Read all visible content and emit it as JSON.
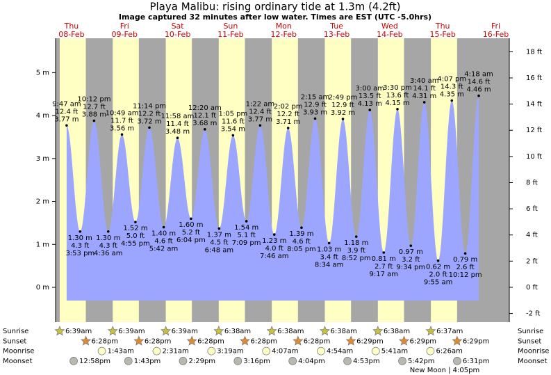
{
  "chart_data": {
    "type": "tide",
    "title": "Playa Malibu: rising  ordinary tide at 1.3m (4.2ft)",
    "subtitle": "Image captured 32 minutes after low water. Times are EST (UTC -5.0hrs)",
    "days": [
      {
        "weekday": "Thu",
        "date": "08-Feb"
      },
      {
        "weekday": "Fri",
        "date": "09-Feb"
      },
      {
        "weekday": "Sat",
        "date": "10-Feb"
      },
      {
        "weekday": "Sun",
        "date": "11-Feb"
      },
      {
        "weekday": "Mon",
        "date": "12-Feb"
      },
      {
        "weekday": "Tue",
        "date": "13-Feb"
      },
      {
        "weekday": "Wed",
        "date": "14-Feb"
      },
      {
        "weekday": "Thu",
        "date": "15-Feb"
      },
      {
        "weekday": "Fri",
        "date": "16-Feb"
      }
    ],
    "extremes": [
      {
        "date": "08-Feb",
        "time": "9:47 am",
        "value": 3.77,
        "value_label": "3.77 m",
        "ft_label": "12.4 ft"
      },
      {
        "date": "08-Feb",
        "time": "3:53 pm",
        "value": 1.3,
        "value_label": "1.30 m",
        "ft_label": "4.3 ft"
      },
      {
        "date": "08-Feb",
        "time": "10:12 pm",
        "value": 3.88,
        "value_label": "3.88 m",
        "ft_label": "12.7 ft"
      },
      {
        "date": "09-Feb",
        "time": "4:36 am",
        "value": 1.3,
        "value_label": "1.30 m",
        "ft_label": "4.3 ft"
      },
      {
        "date": "09-Feb",
        "time": "10:49 am",
        "value": 3.56,
        "value_label": "3.56 m",
        "ft_label": "11.7 ft"
      },
      {
        "date": "09-Feb",
        "time": "4:55 pm",
        "value": 1.52,
        "value_label": "1.52 m",
        "ft_label": "5.0 ft"
      },
      {
        "date": "09-Feb",
        "time": "11:14 pm",
        "value": 3.72,
        "value_label": "3.72 m",
        "ft_label": "12.2 ft"
      },
      {
        "date": "10-Feb",
        "time": "5:42 am",
        "value": 1.4,
        "value_label": "1.40 m",
        "ft_label": "4.6 ft"
      },
      {
        "date": "10-Feb",
        "time": "11:58 am",
        "value": 3.48,
        "value_label": "3.48 m",
        "ft_label": "11.4 ft"
      },
      {
        "date": "10-Feb",
        "time": "6:04 pm",
        "value": 1.6,
        "value_label": "1.60 m",
        "ft_label": "5.2 ft"
      },
      {
        "date": "11-Feb",
        "time": "12:20 am",
        "value": 3.68,
        "value_label": "3.68 m",
        "ft_label": "12.1 ft"
      },
      {
        "date": "11-Feb",
        "time": "6:48 am",
        "value": 1.37,
        "value_label": "1.37 m",
        "ft_label": "4.5 ft"
      },
      {
        "date": "11-Feb",
        "time": "1:05 pm",
        "value": 3.54,
        "value_label": "3.54 m",
        "ft_label": "11.6 ft"
      },
      {
        "date": "11-Feb",
        "time": "7:09 pm",
        "value": 1.54,
        "value_label": "1.54 m",
        "ft_label": "5.1 ft"
      },
      {
        "date": "12-Feb",
        "time": "1:22 am",
        "value": 3.77,
        "value_label": "3.77 m",
        "ft_label": "12.4 ft"
      },
      {
        "date": "12-Feb",
        "time": "7:46 am",
        "value": 1.23,
        "value_label": "1.23 m",
        "ft_label": "4.0 ft"
      },
      {
        "date": "12-Feb",
        "time": "2:02 pm",
        "value": 3.71,
        "value_label": "3.71 m",
        "ft_label": "12.2 ft"
      },
      {
        "date": "12-Feb",
        "time": "8:05 pm",
        "value": 1.39,
        "value_label": "1.39 m",
        "ft_label": "4.6 ft"
      },
      {
        "date": "13-Feb",
        "time": "2:15 am",
        "value": 3.93,
        "value_label": "3.93 m",
        "ft_label": "12.9 ft"
      },
      {
        "date": "13-Feb",
        "time": "8:34 am",
        "value": 1.03,
        "value_label": "1.03 m",
        "ft_label": "3.4 ft"
      },
      {
        "date": "13-Feb",
        "time": "2:49 pm",
        "value": 3.92,
        "value_label": "3.92 m",
        "ft_label": "12.9 ft"
      },
      {
        "date": "13-Feb",
        "time": "8:52 pm",
        "value": 1.18,
        "value_label": "1.18 m",
        "ft_label": "3.9 ft"
      },
      {
        "date": "14-Feb",
        "time": "3:00 am",
        "value": 4.13,
        "value_label": "4.13 m",
        "ft_label": "13.5 ft"
      },
      {
        "date": "14-Feb",
        "time": "9:17 am",
        "value": 0.81,
        "value_label": "0.81 m",
        "ft_label": "2.7 ft"
      },
      {
        "date": "14-Feb",
        "time": "3:30 pm",
        "value": 4.15,
        "value_label": "4.15 m",
        "ft_label": "13.6 ft"
      },
      {
        "date": "14-Feb",
        "time": "9:34 pm",
        "value": 0.97,
        "value_label": "0.97 m",
        "ft_label": "3.2 ft"
      },
      {
        "date": "15-Feb",
        "time": "3:40 am",
        "value": 4.31,
        "value_label": "4.31 m",
        "ft_label": "14.1 ft"
      },
      {
        "date": "15-Feb",
        "time": "9:55 am",
        "value": 0.62,
        "value_label": "0.62 m",
        "ft_label": "2.0 ft"
      },
      {
        "date": "15-Feb",
        "time": "4:07 pm",
        "value": 4.35,
        "value_label": "4.35 m",
        "ft_label": "14.3 ft"
      },
      {
        "date": "15-Feb",
        "time": "10:12 pm",
        "value": 0.79,
        "value_label": "0.79 m",
        "ft_label": "2.6 ft"
      },
      {
        "date": "16-Feb",
        "time": "4:18 am",
        "value": 4.46,
        "value_label": "4.46 m",
        "ft_label": "14.6 ft"
      }
    ],
    "ylim": [
      -0.81,
      5.8
    ],
    "yticks": [
      {
        "value": 0,
        "label": "0 m"
      },
      {
        "value": 1,
        "label": "1 m"
      },
      {
        "value": 2,
        "label": "2 m"
      },
      {
        "value": 3,
        "label": "3 m"
      },
      {
        "value": 4,
        "label": "4 m"
      },
      {
        "value": 5,
        "label": "5 m"
      }
    ],
    "y2lim": [
      -2.66,
      19.03
    ],
    "y2ticks": [
      {
        "value": -2,
        "label": "-2 ft"
      },
      {
        "value": 0,
        "label": "0 ft"
      },
      {
        "value": 2,
        "label": "2 ft"
      },
      {
        "value": 4,
        "label": "4 ft"
      },
      {
        "value": 6,
        "label": "6 ft"
      },
      {
        "value": 8,
        "label": "8 ft"
      },
      {
        "value": 10,
        "label": "10 ft"
      },
      {
        "value": 12,
        "label": "12 ft"
      },
      {
        "value": 14,
        "label": "14 ft"
      },
      {
        "value": 16,
        "label": "16 ft"
      },
      {
        "value": 18,
        "label": "18 ft"
      }
    ],
    "tide_color": "#9ca6ff",
    "night_color": "#a6a6a6",
    "day_color": "#ffffc4",
    "date_color": "#cc0000",
    "astronomy": [
      {
        "name": "Sunrise",
        "icon": "star",
        "color": "#c8c040",
        "events": [
          {
            "date": "08-Feb",
            "time": "6:39am"
          },
          {
            "date": "09-Feb",
            "time": "6:39am"
          },
          {
            "date": "10-Feb",
            "time": "6:39am"
          },
          {
            "date": "11-Feb",
            "time": "6:38am"
          },
          {
            "date": "12-Feb",
            "time": "6:38am"
          },
          {
            "date": "13-Feb",
            "time": "6:38am"
          },
          {
            "date": "14-Feb",
            "time": "6:38am"
          },
          {
            "date": "15-Feb",
            "time": "6:37am"
          }
        ]
      },
      {
        "name": "Sunset",
        "icon": "star",
        "color": "#e08a30",
        "events": [
          {
            "date": "08-Feb",
            "time": "6:28pm"
          },
          {
            "date": "09-Feb",
            "time": "6:28pm"
          },
          {
            "date": "10-Feb",
            "time": "6:28pm"
          },
          {
            "date": "11-Feb",
            "time": "6:28pm"
          },
          {
            "date": "12-Feb",
            "time": "6:28pm"
          },
          {
            "date": "13-Feb",
            "time": "6:29pm"
          },
          {
            "date": "14-Feb",
            "time": "6:29pm"
          },
          {
            "date": "15-Feb",
            "time": "6:29pm"
          }
        ]
      },
      {
        "name": "Moonrise",
        "icon": "circle",
        "color": "#ffffc8",
        "events": [
          {
            "date": "09-Feb",
            "time": "1:43am"
          },
          {
            "date": "10-Feb",
            "time": "2:31am"
          },
          {
            "date": "11-Feb",
            "time": "3:19am"
          },
          {
            "date": "12-Feb",
            "time": "4:07am"
          },
          {
            "date": "13-Feb",
            "time": "4:54am"
          },
          {
            "date": "14-Feb",
            "time": "5:41am"
          },
          {
            "date": "15-Feb",
            "time": "6:26am"
          }
        ]
      },
      {
        "name": "Moonset",
        "icon": "circle",
        "color": "#b8b8b0",
        "events": [
          {
            "date": "08-Feb",
            "time": "12:58pm"
          },
          {
            "date": "09-Feb",
            "time": "1:43pm"
          },
          {
            "date": "10-Feb",
            "time": "2:29pm"
          },
          {
            "date": "11-Feb",
            "time": "3:16pm"
          },
          {
            "date": "12-Feb",
            "time": "4:04pm"
          },
          {
            "date": "13-Feb",
            "time": "4:53pm"
          },
          {
            "date": "14-Feb",
            "time": "5:42pm"
          },
          {
            "date": "15-Feb",
            "time": "6:31pm"
          }
        ]
      }
    ],
    "note": "New Moon | 4:05pm"
  }
}
